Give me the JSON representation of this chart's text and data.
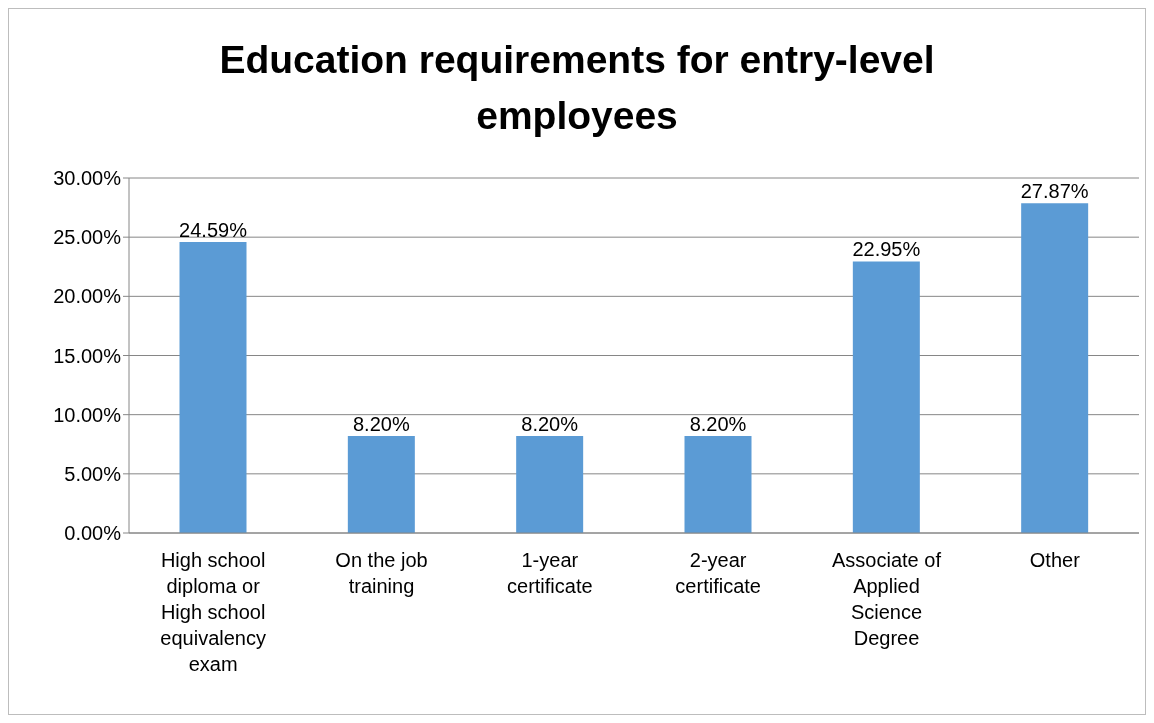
{
  "chart_data": {
    "type": "bar",
    "title": "Education requirements for entry-level employees",
    "categories": [
      "High school diploma or High school equivalency exam",
      "On the job training",
      "1-year certificate",
      "2-year certificate",
      "Associate of Applied Science Degree",
      "Other"
    ],
    "values": [
      24.59,
      8.2,
      8.2,
      8.2,
      22.95,
      27.87
    ],
    "value_labels": [
      "24.59%",
      "8.20%",
      "8.20%",
      "8.20%",
      "22.95%",
      "27.87%"
    ],
    "color": "#5b9bd5",
    "ylim": [
      0,
      30
    ],
    "yticks": [
      {
        "value": 0,
        "label": "0.00%"
      },
      {
        "value": 5,
        "label": "5.00%"
      },
      {
        "value": 10,
        "label": "10.00%"
      },
      {
        "value": 15,
        "label": "15.00%"
      },
      {
        "value": 20,
        "label": "20.00%"
      },
      {
        "value": 25,
        "label": "25.00%"
      },
      {
        "value": 30,
        "label": "30.00%"
      }
    ],
    "grid": "y"
  }
}
